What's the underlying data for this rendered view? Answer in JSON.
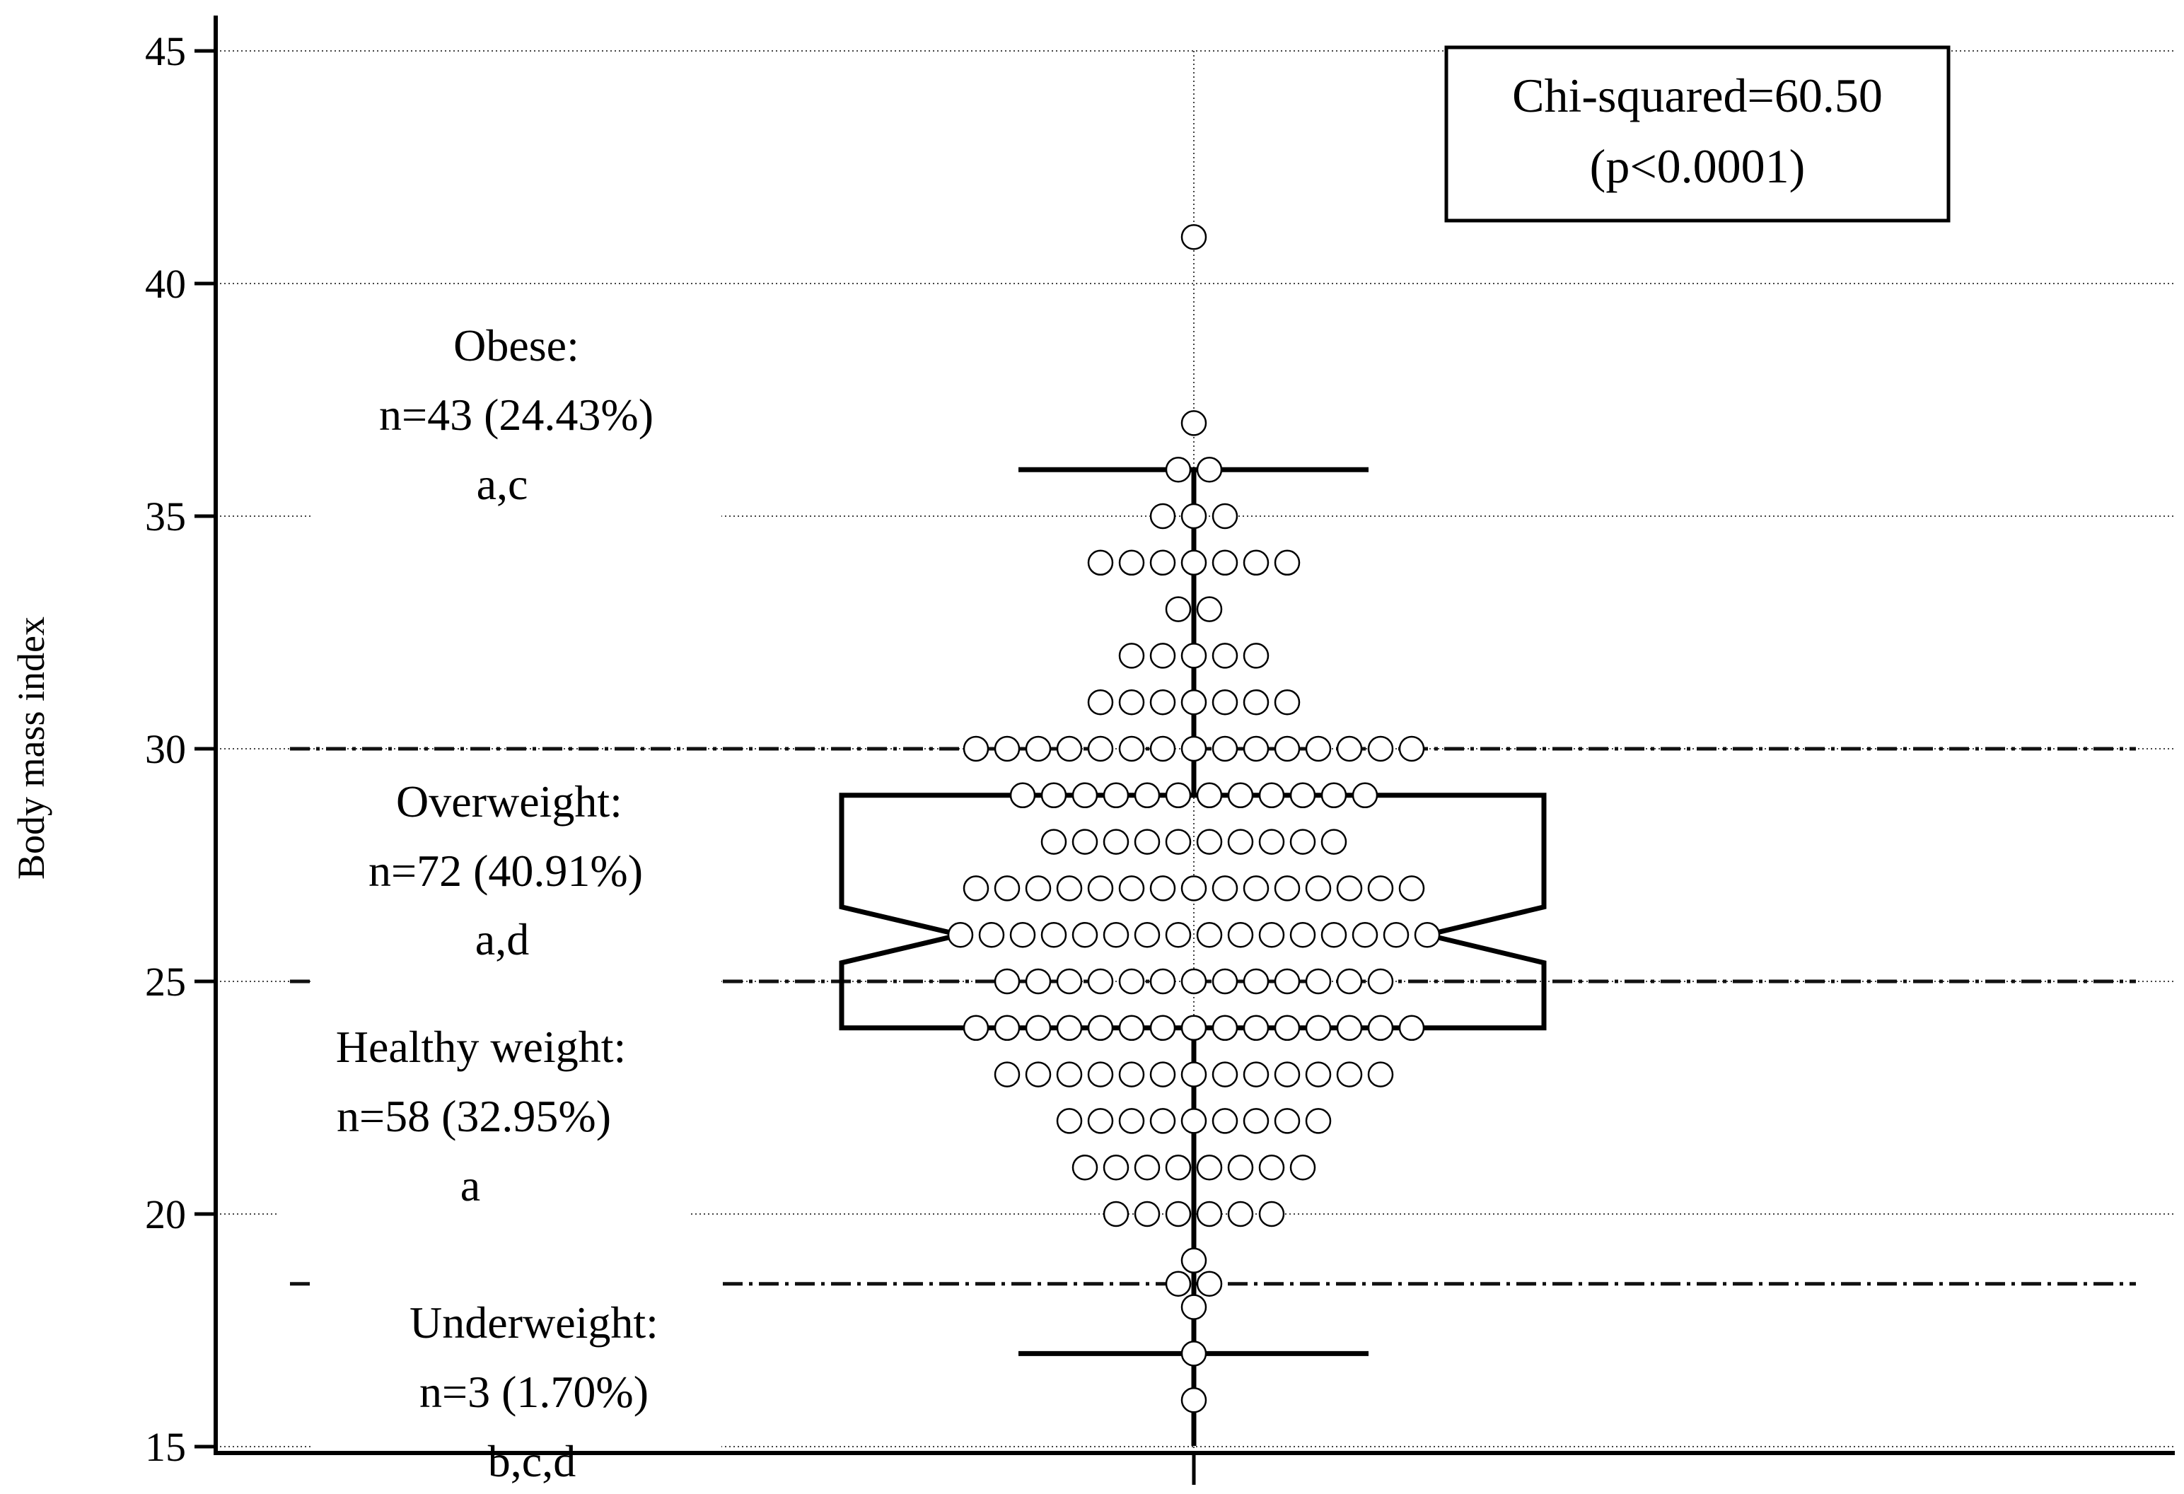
{
  "chart_data": {
    "type": "dot-box",
    "ylabel": "Body mass index",
    "ylim": [
      14,
      46
    ],
    "yticks": [
      15,
      20,
      25,
      30,
      35,
      40,
      45
    ],
    "cutoffs": [
      18.5,
      25,
      30
    ],
    "stat_box": {
      "line1": "Chi-squared=60.50",
      "line2": "(p<0.0001)"
    },
    "categories": [
      {
        "name": "Obese:",
        "count": "n=43 (24.43%)",
        "letters": "a,c"
      },
      {
        "name": "Overweight:",
        "count": "n=72 (40.91%)",
        "letters": "a,d"
      },
      {
        "name": "Healthy weight:",
        "count": "n=58 (32.95%)",
        "letters": "a"
      },
      {
        "name": "Underweight:",
        "count": "n=3 (1.70%)",
        "letters": "b,c,d"
      }
    ],
    "box": {
      "q1": 24,
      "median": 26,
      "q3": 29,
      "notch_low": 25.4,
      "notch_high": 26.6,
      "whisker_low": 17,
      "whisker_high": 36
    },
    "dot_counts": [
      {
        "bmi": 41,
        "count": 1
      },
      {
        "bmi": 37,
        "count": 1
      },
      {
        "bmi": 36,
        "count": 2
      },
      {
        "bmi": 35,
        "count": 3
      },
      {
        "bmi": 34,
        "count": 7
      },
      {
        "bmi": 33,
        "count": 2
      },
      {
        "bmi": 32,
        "count": 5
      },
      {
        "bmi": 31,
        "count": 7
      },
      {
        "bmi": 30,
        "count": 15
      },
      {
        "bmi": 29,
        "count": 12
      },
      {
        "bmi": 28,
        "count": 10
      },
      {
        "bmi": 27,
        "count": 15
      },
      {
        "bmi": 26,
        "count": 16
      },
      {
        "bmi": 25,
        "count": 13
      },
      {
        "bmi": 24,
        "count": 15
      },
      {
        "bmi": 23,
        "count": 13
      },
      {
        "bmi": 22,
        "count": 9
      },
      {
        "bmi": 21,
        "count": 8
      },
      {
        "bmi": 20,
        "count": 6
      },
      {
        "bmi": 19,
        "count": 1
      },
      {
        "bmi": 18.5,
        "count": 2
      },
      {
        "bmi": 18,
        "count": 1
      },
      {
        "bmi": 17,
        "count": 1
      },
      {
        "bmi": 16,
        "count": 1
      }
    ]
  }
}
